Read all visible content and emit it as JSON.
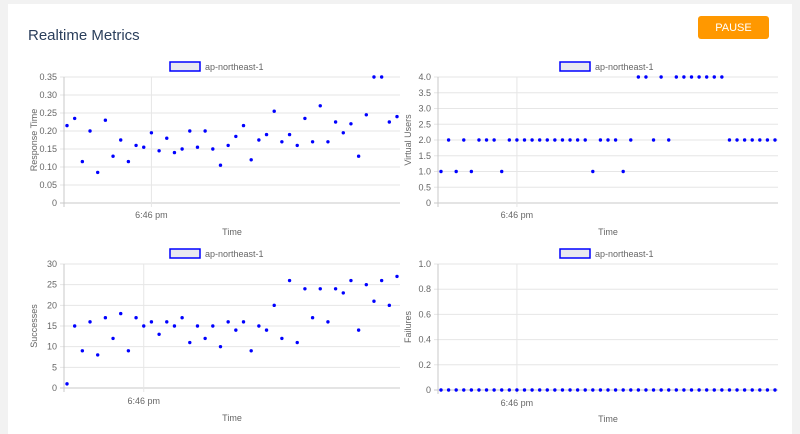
{
  "page": {
    "title": "Realtime Metrics",
    "pause_label": "PAUSE"
  },
  "colors": {
    "accent": "#ff9800",
    "series": "#0000ff",
    "legend_fill": "#e8e8f0",
    "grid": "#e6e6e6"
  },
  "chart_data": [
    {
      "type": "scatter",
      "legend": "ap-northeast-1",
      "xlabel": "Time",
      "ylabel": "Response Time",
      "x_tick_label": "6:46 pm",
      "x_tick_index": 11,
      "ylim": [
        0,
        0.35
      ],
      "y_ticks": [
        0,
        0.05,
        0.1,
        0.15,
        0.2,
        0.25,
        0.3,
        0.35
      ],
      "y_tick_labels": [
        "0",
        "0.05",
        "0.10",
        "0.15",
        "0.20",
        "0.25",
        "0.30",
        "0.35"
      ],
      "values": [
        0.215,
        0.235,
        0.115,
        0.2,
        0.085,
        0.23,
        0.13,
        0.175,
        0.115,
        0.16,
        0.155,
        0.195,
        0.145,
        0.18,
        0.14,
        0.15,
        0.2,
        0.155,
        0.2,
        0.15,
        0.105,
        0.16,
        0.185,
        0.215,
        0.12,
        0.175,
        0.19,
        0.255,
        0.17,
        0.19,
        0.16,
        0.235,
        0.17,
        0.27,
        0.17,
        0.225,
        0.195,
        0.22,
        0.13,
        0.245,
        0.35,
        0.35,
        0.225,
        0.24
      ]
    },
    {
      "type": "scatter",
      "legend": "ap-northeast-1",
      "xlabel": "Time",
      "ylabel": "Virtual Users",
      "x_tick_label": "6:46 pm",
      "x_tick_index": 10,
      "ylim": [
        0,
        4
      ],
      "y_ticks": [
        0,
        0.5,
        1,
        1.5,
        2,
        2.5,
        3,
        3.5,
        4
      ],
      "y_tick_labels": [
        "0",
        "0.5",
        "1.0",
        "1.5",
        "2.0",
        "2.5",
        "3.0",
        "3.5",
        "4.0"
      ],
      "values": [
        1,
        2,
        1,
        2,
        1,
        2,
        2,
        2,
        1,
        2,
        2,
        2,
        2,
        2,
        2,
        2,
        2,
        2,
        2,
        2,
        1,
        2,
        2,
        2,
        1,
        2,
        4,
        4,
        2,
        4,
        2,
        4,
        4,
        4,
        4,
        4,
        4,
        4,
        2,
        2,
        2,
        2,
        2,
        2,
        2
      ]
    },
    {
      "type": "scatter",
      "legend": "ap-northeast-1",
      "xlabel": "Time",
      "ylabel": "Successes",
      "x_tick_label": "6:46 pm",
      "x_tick_index": 10,
      "ylim": [
        0,
        30
      ],
      "y_ticks": [
        0,
        5,
        10,
        15,
        20,
        25,
        30
      ],
      "y_tick_labels": [
        "0",
        "5",
        "10",
        "15",
        "20",
        "25",
        "30"
      ],
      "values": [
        1,
        15,
        9,
        16,
        8,
        17,
        12,
        18,
        9,
        17,
        15,
        16,
        13,
        16,
        15,
        17,
        11,
        15,
        12,
        15,
        10,
        16,
        14,
        16,
        9,
        15,
        14,
        20,
        12,
        26,
        11,
        24,
        17,
        24,
        16,
        24,
        23,
        26,
        14,
        25,
        21,
        26,
        20,
        27
      ]
    },
    {
      "type": "scatter",
      "legend": "ap-northeast-1",
      "xlabel": "Time",
      "ylabel": "Failures",
      "x_tick_label": "6:46 pm",
      "x_tick_index": 10,
      "ylim": [
        0,
        1
      ],
      "y_ticks": [
        0,
        0.2,
        0.4,
        0.6,
        0.8,
        1
      ],
      "y_tick_labels": [
        "0",
        "0.2",
        "0.4",
        "0.6",
        "0.8",
        "1.0"
      ],
      "values": [
        0,
        0,
        0,
        0,
        0,
        0,
        0,
        0,
        0,
        0,
        0,
        0,
        0,
        0,
        0,
        0,
        0,
        0,
        0,
        0,
        0,
        0,
        0,
        0,
        0,
        0,
        0,
        0,
        0,
        0,
        0,
        0,
        0,
        0,
        0,
        0,
        0,
        0,
        0,
        0,
        0,
        0,
        0,
        0,
        0
      ]
    }
  ]
}
